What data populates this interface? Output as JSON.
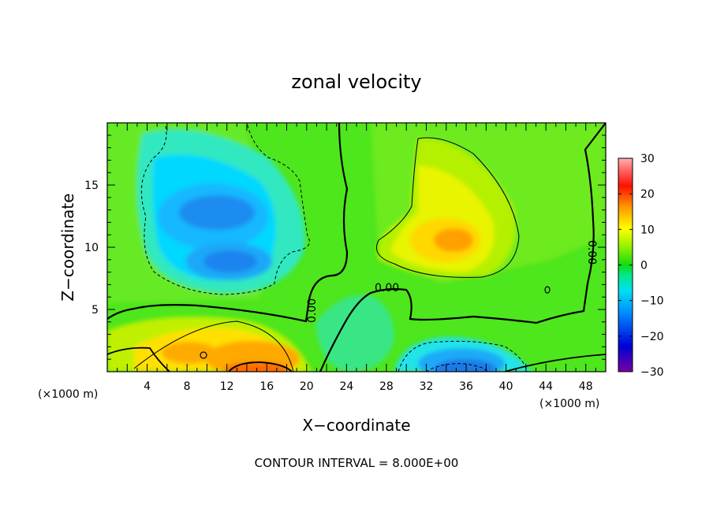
{
  "chart_data": {
    "type": "heatmap",
    "title": "zonal velocity",
    "xlabel": "X−coordinate",
    "ylabel": "Z−coordinate",
    "x_unit_label": "(×1000 m)",
    "y_unit_label": "(×1000 m)",
    "xlim": [
      0,
      50
    ],
    "ylim": [
      0,
      20
    ],
    "x_ticks": [
      4,
      8,
      12,
      16,
      20,
      24,
      28,
      32,
      36,
      40,
      44,
      48
    ],
    "y_ticks": [
      5,
      10,
      15
    ],
    "colorbar": {
      "vmin": -30,
      "vmax": 30,
      "ticks": [
        30,
        20,
        10,
        0,
        -10,
        -20,
        -30
      ],
      "tick_labels": [
        "30",
        "20",
        "10",
        "0",
        "−10",
        "−20",
        "−30"
      ]
    },
    "contour_labels": [
      "0.00",
      "0.00",
      "0.00"
    ],
    "note": "CONTOUR INTERVAL = 8.000E+00",
    "features": [
      {
        "x": 11,
        "z": 12.5,
        "value": -11
      },
      {
        "x": 12,
        "z": 8.8,
        "value": -11
      },
      {
        "x": 14,
        "z": 1.2,
        "value": 14
      },
      {
        "x": 9,
        "z": 1.8,
        "value": 10
      },
      {
        "x": 35,
        "z": 10.8,
        "value": 12
      },
      {
        "x": 34,
        "z": 1.2,
        "value": -13
      },
      {
        "x": 26,
        "z": 4.5,
        "value": -2
      }
    ]
  }
}
